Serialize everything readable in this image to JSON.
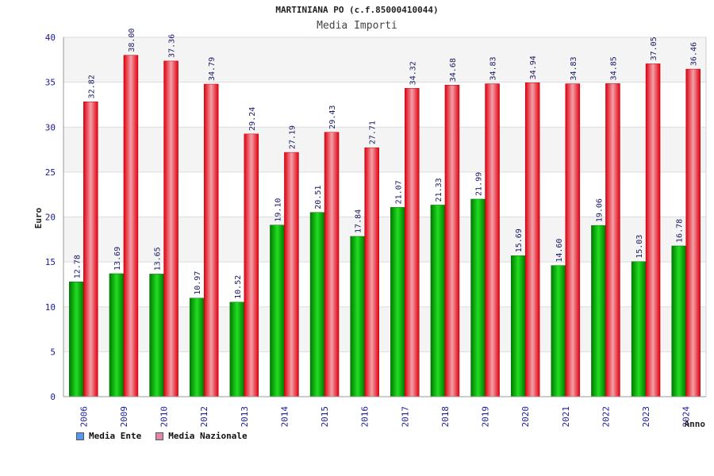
{
  "chart_data": {
    "type": "bar",
    "title": "MARTINIANA PO (c.f.85000410044)",
    "subtitle": "Media Importi",
    "xlabel": "Anno",
    "ylabel": "Euro",
    "ylim": [
      0,
      40
    ],
    "yticks": [
      "0",
      "5",
      "10",
      "15",
      "20",
      "25",
      "30",
      "35",
      "40"
    ],
    "categories": [
      "2006",
      "2009",
      "2010",
      "2012",
      "2013",
      "2014",
      "2015",
      "2016",
      "2017",
      "2018",
      "2019",
      "2020",
      "2021",
      "2022",
      "2023",
      "2024"
    ],
    "series": [
      {
        "name": "Media Ente",
        "color": "#00a000",
        "legend_color": "#5599ee",
        "values": [
          12.78,
          13.69,
          13.65,
          10.97,
          10.52,
          19.1,
          20.51,
          17.84,
          21.07,
          21.33,
          21.99,
          15.69,
          14.6,
          19.06,
          15.03,
          16.78
        ],
        "labels": [
          "12.78",
          "13.69",
          "13.65",
          "10.97",
          "10.52",
          "19.10",
          "20.51",
          "17.84",
          "21.07",
          "21.33",
          "21.99",
          "15.69",
          "14.60",
          "19.06",
          "15.03",
          "16.78"
        ]
      },
      {
        "name": "Media Nazionale",
        "color": "#ee1122",
        "legend_color": "#dd88aa",
        "values": [
          32.82,
          38.0,
          37.36,
          34.79,
          29.24,
          27.19,
          29.43,
          27.71,
          34.32,
          34.68,
          34.83,
          34.94,
          34.83,
          34.85,
          37.05,
          36.46
        ],
        "labels": [
          "32.82",
          "38.00",
          "37.36",
          "34.79",
          "29.24",
          "27.19",
          "29.43",
          "27.71",
          "34.32",
          "34.68",
          "34.83",
          "34.94",
          "34.83",
          "34.85",
          "37.05",
          "36.46"
        ]
      }
    ],
    "grid": true,
    "legend": "bottom-left"
  }
}
